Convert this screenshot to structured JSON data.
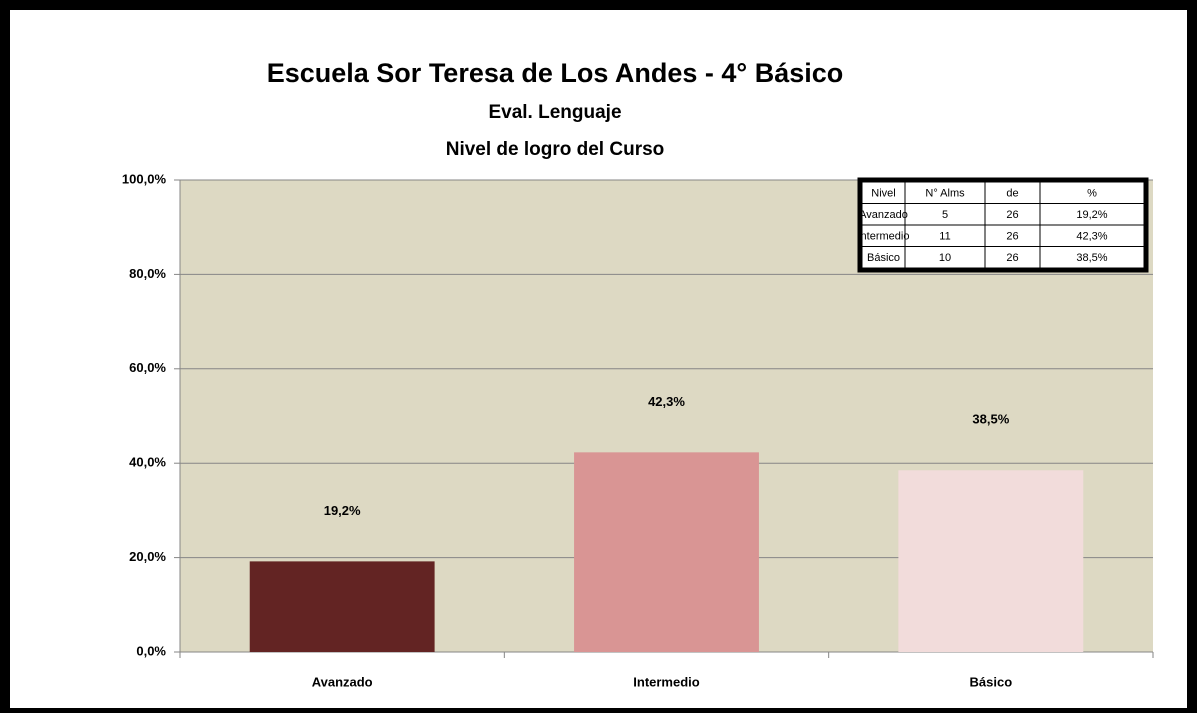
{
  "chart_data": {
    "type": "bar",
    "title": "Escuela Sor Teresa de Los Andes - 4° Básico",
    "subtitle": [
      "Eval. Lenguaje",
      "Nivel de logro del  Curso"
    ],
    "categories": [
      "Avanzado",
      "Intermedio",
      "Básico"
    ],
    "values": [
      19.2,
      42.3,
      38.5
    ],
    "value_labels": [
      "19,2%",
      "42,3%",
      "38,5%"
    ],
    "colors": [
      "#632423",
      "#d99594",
      "#f2dcdb"
    ],
    "ylim": [
      0,
      100
    ],
    "yticks": [
      {
        "value": 0,
        "label": "0,0%"
      },
      {
        "value": 20,
        "label": "20,0%"
      },
      {
        "value": 40,
        "label": "40,0%"
      },
      {
        "value": 60,
        "label": "60,0%"
      },
      {
        "value": 80,
        "label": "80,0%"
      },
      {
        "value": 100,
        "label": "100,0%"
      }
    ],
    "grid": true,
    "table": {
      "header": [
        "Nivel",
        "N° Alms",
        "de",
        "%"
      ],
      "rows": [
        [
          "Avanzado",
          5,
          26,
          "19,2%"
        ],
        [
          "Intermedio",
          11,
          26,
          "42,3%"
        ],
        [
          "Básico",
          10,
          26,
          "38,5%"
        ]
      ]
    }
  }
}
